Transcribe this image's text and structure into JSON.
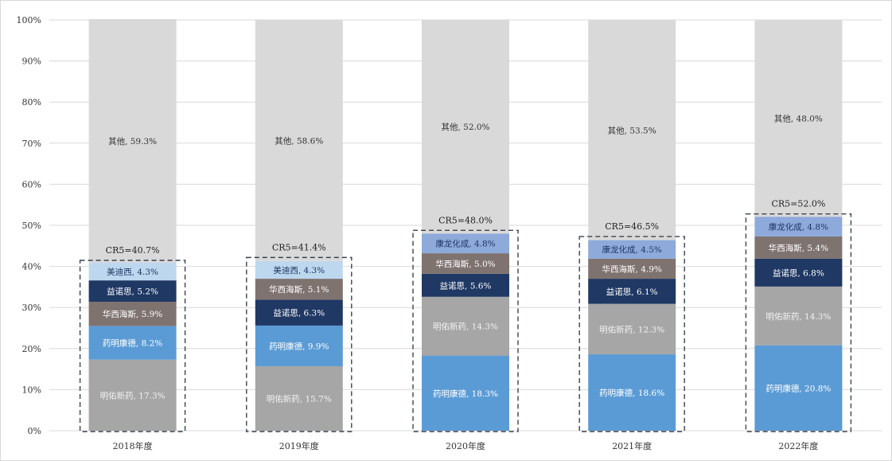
{
  "chart_data": {
    "type": "bar",
    "stacked": true,
    "categories": [
      "2018年度",
      "2019年度",
      "2020年度",
      "2021年度",
      "2022年度"
    ],
    "ylim": [
      0,
      100
    ],
    "y_ticks": [
      "0%",
      "10%",
      "20%",
      "30%",
      "40%",
      "50%",
      "60%",
      "70%",
      "80%",
      "90%",
      "100%"
    ],
    "grid": true,
    "bars": [
      {
        "category": "2018年度",
        "cr5_label": "CR5=40.7%",
        "cr5": 40.7,
        "segments": [
          {
            "label": "明佑新药, 17.3%",
            "value": 17.3,
            "color": "#a6a6a6",
            "text_color": "#f2f2f2"
          },
          {
            "label": "药明康德, 8.2%",
            "value": 8.2,
            "color": "#5b9bd5",
            "text_color": "#ffffff"
          },
          {
            "label": "华西海斯, 5.9%",
            "value": 5.9,
            "color": "#7f7370",
            "text_color": "#ffffff"
          },
          {
            "label": "益诺思, 5.2%",
            "value": 5.2,
            "color": "#1f3864",
            "text_color": "#ffffff"
          },
          {
            "label": "美迪西, 4.3%",
            "value": 4.3,
            "color": "#bdd7ee",
            "text_color": "#1f3864"
          },
          {
            "label": "其他, 59.3%",
            "value": 59.3,
            "color": "#d9d9d9",
            "text_color": "#333333"
          }
        ]
      },
      {
        "category": "2019年度",
        "cr5_label": "CR5=41.4%",
        "cr5": 41.4,
        "segments": [
          {
            "label": "明佑新药, 15.7%",
            "value": 15.7,
            "color": "#a6a6a6",
            "text_color": "#f2f2f2"
          },
          {
            "label": "药明康德, 9.9%",
            "value": 9.9,
            "color": "#5b9bd5",
            "text_color": "#ffffff"
          },
          {
            "label": "益诺思, 6.3%",
            "value": 6.3,
            "color": "#1f3864",
            "text_color": "#ffffff"
          },
          {
            "label": "华西海斯, 5.1%",
            "value": 5.1,
            "color": "#7f7370",
            "text_color": "#ffffff"
          },
          {
            "label": "美迪西, 4.3%",
            "value": 4.3,
            "color": "#bdd7ee",
            "text_color": "#1f3864"
          },
          {
            "label": "其他, 58.6%",
            "value": 58.6,
            "color": "#d9d9d9",
            "text_color": "#333333"
          }
        ]
      },
      {
        "category": "2020年度",
        "cr5_label": "CR5=48.0%",
        "cr5": 48.0,
        "segments": [
          {
            "label": "药明康德, 18.3%",
            "value": 18.3,
            "color": "#5b9bd5",
            "text_color": "#ffffff"
          },
          {
            "label": "明佑新药, 14.3%",
            "value": 14.3,
            "color": "#a6a6a6",
            "text_color": "#f2f2f2"
          },
          {
            "label": "益诺思, 5.6%",
            "value": 5.6,
            "color": "#1f3864",
            "text_color": "#ffffff"
          },
          {
            "label": "华西海斯, 5.0%",
            "value": 5.0,
            "color": "#7f7370",
            "text_color": "#ffffff"
          },
          {
            "label": "康龙化成, 4.8%",
            "value": 4.8,
            "color": "#8eaadb",
            "text_color": "#1f3864"
          },
          {
            "label": "其他, 52.0%",
            "value": 52.0,
            "color": "#d9d9d9",
            "text_color": "#333333"
          }
        ]
      },
      {
        "category": "2021年度",
        "cr5_label": "CR5=46.5%",
        "cr5": 46.5,
        "segments": [
          {
            "label": "药明康德, 18.6%",
            "value": 18.6,
            "color": "#5b9bd5",
            "text_color": "#ffffff"
          },
          {
            "label": "明佑新药, 12.3%",
            "value": 12.3,
            "color": "#a6a6a6",
            "text_color": "#f2f2f2"
          },
          {
            "label": "益诺思, 6.1%",
            "value": 6.1,
            "color": "#1f3864",
            "text_color": "#ffffff"
          },
          {
            "label": "华西海斯, 4.9%",
            "value": 4.9,
            "color": "#7f7370",
            "text_color": "#ffffff"
          },
          {
            "label": "康龙化成, 4.5%",
            "value": 4.5,
            "color": "#8eaadb",
            "text_color": "#1f3864"
          },
          {
            "label": "其他, 53.5%",
            "value": 53.5,
            "color": "#d9d9d9",
            "text_color": "#333333"
          }
        ]
      },
      {
        "category": "2022年度",
        "cr5_label": "CR5=52.0%",
        "cr5": 52.0,
        "segments": [
          {
            "label": "药明康德, 20.8%",
            "value": 20.8,
            "color": "#5b9bd5",
            "text_color": "#ffffff"
          },
          {
            "label": "明佑新药, 14.3%",
            "value": 14.3,
            "color": "#a6a6a6",
            "text_color": "#f2f2f2"
          },
          {
            "label": "益诺思, 6.8%",
            "value": 6.8,
            "color": "#1f3864",
            "text_color": "#ffffff"
          },
          {
            "label": "华西海斯, 5.4%",
            "value": 5.4,
            "color": "#7f7370",
            "text_color": "#ffffff"
          },
          {
            "label": "康龙化成, 4.8%",
            "value": 4.8,
            "color": "#8eaadb",
            "text_color": "#1f3864"
          },
          {
            "label": "其他, 48.0%",
            "value": 48.0,
            "color": "#d9d9d9",
            "text_color": "#333333"
          }
        ]
      }
    ]
  }
}
